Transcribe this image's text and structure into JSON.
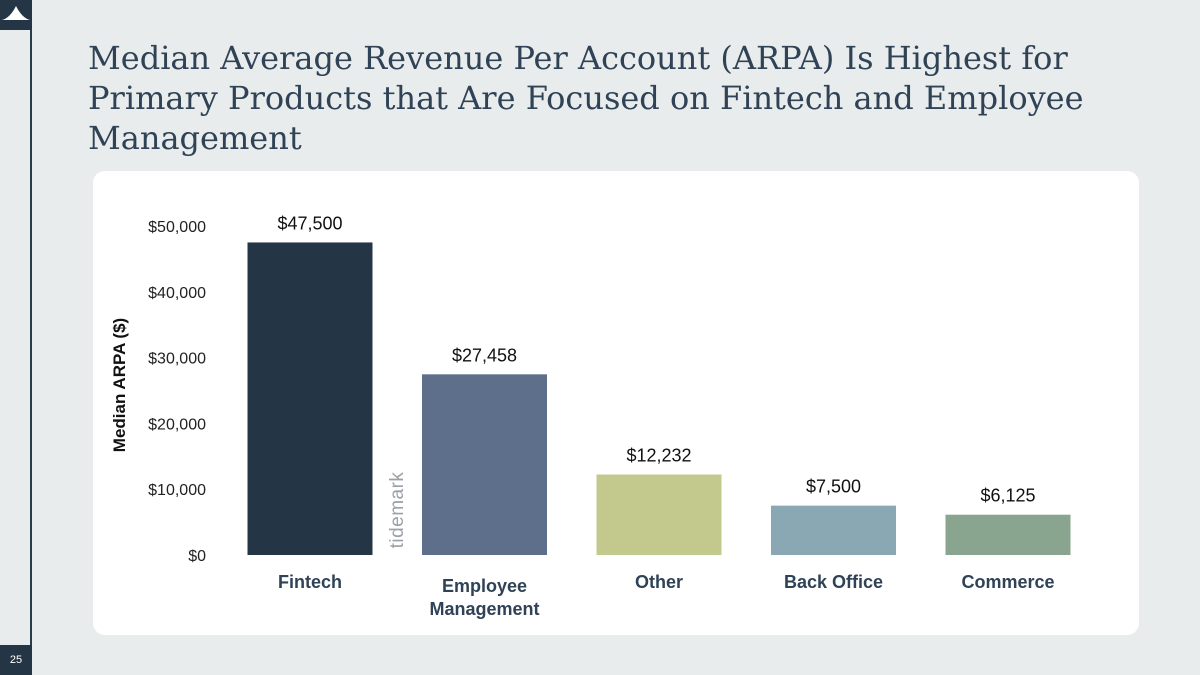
{
  "slide": {
    "title": "Median Average Revenue Per Account (ARPA) Is Highest for Primary Products that Are Focused on Fintech and Employee Management",
    "page_number": "25",
    "watermark": "tidemark"
  },
  "colors": {
    "background": "#e8ecec",
    "card": "#ffffff",
    "title": "#2f4256",
    "rail": "#243646"
  },
  "chart_data": {
    "type": "bar",
    "title": "",
    "xlabel": "",
    "ylabel": "Median ARPA ($)",
    "ylim": [
      0,
      50000
    ],
    "yticks": [
      0,
      10000,
      20000,
      30000,
      40000,
      50000
    ],
    "ytick_labels": [
      "$0",
      "$10,000",
      "$20,000",
      "$30,000",
      "$40,000",
      "$50,000"
    ],
    "categories": [
      "Fintech",
      "Employee Management",
      "Other",
      "Back Office",
      "Commerce"
    ],
    "category_lines": [
      [
        "Fintech"
      ],
      [
        "Employee",
        "Management"
      ],
      [
        "Other"
      ],
      [
        "Back Office"
      ],
      [
        "Commerce"
      ]
    ],
    "values": [
      47500,
      27458,
      12232,
      7500,
      6125
    ],
    "data_labels": [
      "$47,500",
      "$27,458",
      "$12,232",
      "$7,500",
      "$6,125"
    ],
    "bar_colors": [
      "#243646",
      "#5d6f8b",
      "#c3c98d",
      "#8aa7b4",
      "#89a58f"
    ],
    "grid": false,
    "legend": "none"
  }
}
